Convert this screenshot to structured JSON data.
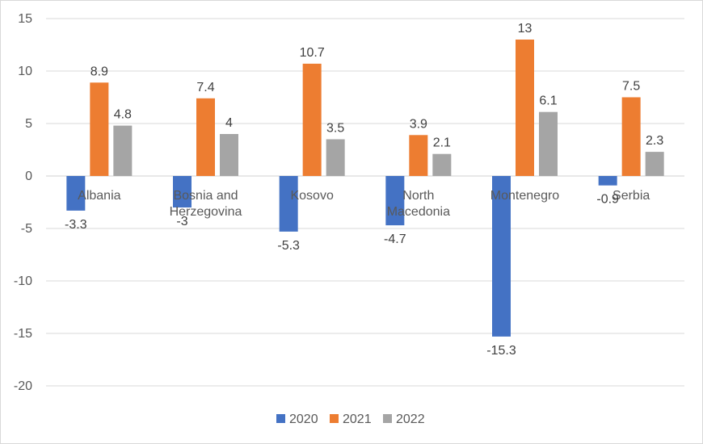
{
  "chart_data": {
    "type": "bar",
    "title": "",
    "xlabel": "",
    "ylabel": "",
    "categories": [
      [
        "Albania"
      ],
      [
        "Bosnia and",
        "Herzegovina"
      ],
      [
        "Kosovo"
      ],
      [
        "North",
        "Macedonia"
      ],
      [
        "Montenegro"
      ],
      [
        "Serbia"
      ]
    ],
    "series": [
      {
        "name": "2020",
        "color": "#4472c4",
        "values": [
          -3.3,
          -3,
          -5.3,
          -4.7,
          -15.3,
          -0.9
        ]
      },
      {
        "name": "2021",
        "color": "#ed7d31",
        "values": [
          8.9,
          7.4,
          10.7,
          3.9,
          13,
          7.5
        ]
      },
      {
        "name": "2022",
        "color": "#a5a5a5",
        "values": [
          4.8,
          4,
          3.5,
          2.1,
          6.1,
          2.3
        ]
      }
    ],
    "ylim": [
      -20,
      15
    ],
    "yticks": [
      15,
      10,
      5,
      0,
      -5,
      -10,
      -15,
      -20
    ],
    "grid": true,
    "legend": "bottom"
  }
}
